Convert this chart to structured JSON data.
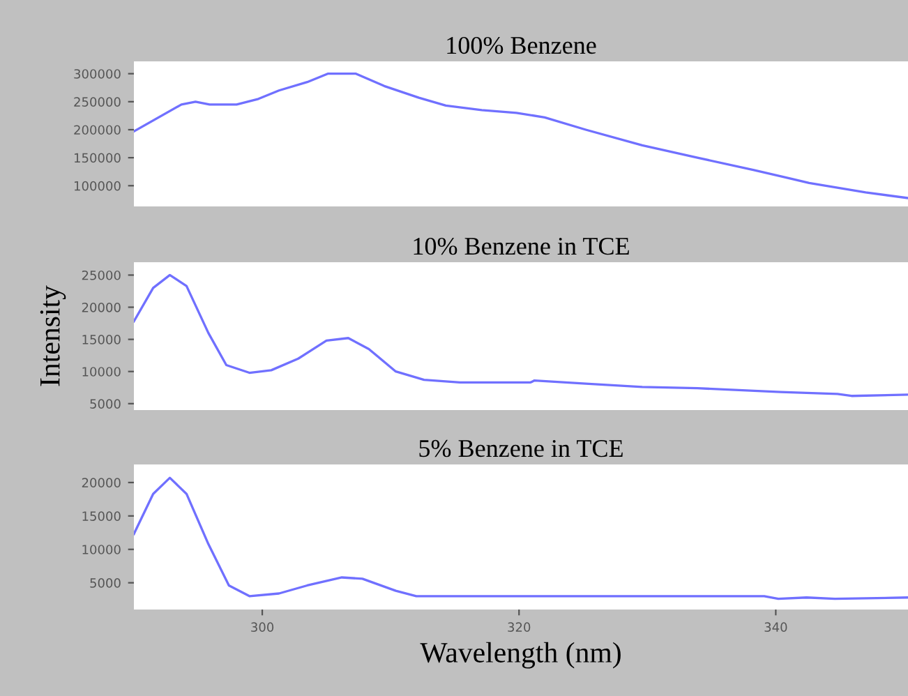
{
  "chart_data": [
    {
      "type": "line",
      "title": "100% Benzene",
      "xlim": [
        290,
        350.3
      ],
      "ylim": [
        63000,
        322000
      ],
      "yticks": [
        100000,
        150000,
        200000,
        250000,
        300000
      ],
      "tick_labels": "y",
      "grid": false,
      "series": [
        {
          "color": "#7070ff",
          "x": [
            290,
            293.7,
            294.8,
            295.9,
            298,
            299.7,
            301.3,
            303.5,
            305.1,
            307.3,
            309.5,
            312.2,
            314.3,
            317.1,
            319.8,
            322,
            325.2,
            329.6,
            333.9,
            338.3,
            342.6,
            347,
            350.3
          ],
          "values": [
            197000,
            245000,
            250000,
            245000,
            245000,
            255000,
            270000,
            285000,
            300000,
            300000,
            278000,
            257000,
            243000,
            235000,
            230000,
            222000,
            200000,
            172000,
            150000,
            128000,
            105000,
            88000,
            78000
          ]
        }
      ]
    },
    {
      "type": "line",
      "title": "10% Benzene in TCE",
      "ylabel": "Intensity",
      "xlim": [
        290,
        350.3
      ],
      "ylim": [
        4000,
        27000
      ],
      "yticks": [
        5000,
        10000,
        15000,
        20000,
        25000
      ],
      "tick_labels": "y",
      "grid": false,
      "series": [
        {
          "color": "#7070ff",
          "x": [
            290,
            291.5,
            292.8,
            294.1,
            295.8,
            297.2,
            299,
            300.7,
            302.8,
            305,
            306.7,
            308.3,
            310.4,
            312.6,
            315.4,
            320.9,
            321.2,
            325.2,
            329.6,
            333.9,
            340.4,
            344.8,
            345.9,
            350.3
          ],
          "values": [
            17800,
            23000,
            25000,
            23300,
            16000,
            11000,
            9800,
            10200,
            12000,
            14800,
            15200,
            13500,
            10000,
            8700,
            8300,
            8300,
            8600,
            8100,
            7600,
            7400,
            6800,
            6500,
            6200,
            6400
          ]
        }
      ]
    },
    {
      "type": "line",
      "title": "5% Benzene in TCE",
      "xlabel": "Wavelength (nm)",
      "xlim": [
        290,
        350.3
      ],
      "xticks": [
        300,
        320,
        340
      ],
      "ylim": [
        1000,
        22700
      ],
      "yticks": [
        5000,
        10000,
        15000,
        20000
      ],
      "grid": false,
      "series": [
        {
          "color": "#7070ff",
          "x": [
            290,
            291.5,
            292.8,
            294.1,
            295.8,
            297.4,
            299,
            301.3,
            303.5,
            306.2,
            307.8,
            310.4,
            312,
            339.1,
            340.2,
            342.4,
            344.6,
            350.3
          ],
          "values": [
            12300,
            18300,
            20700,
            18300,
            10800,
            4600,
            3000,
            3400,
            4600,
            5800,
            5600,
            3800,
            3000,
            3000,
            2600,
            2800,
            2600,
            2800
          ]
        }
      ]
    }
  ]
}
